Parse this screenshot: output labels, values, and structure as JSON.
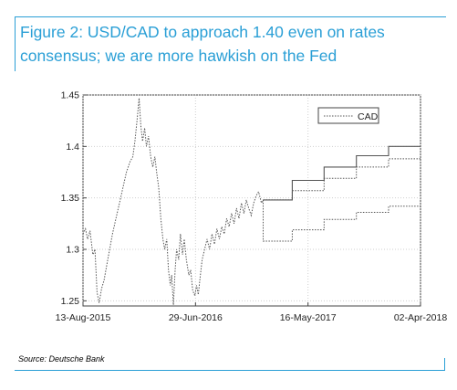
{
  "figure": {
    "title": "Figure 2: USD/CAD to approach 1.40 even on rates consensus; we are more hawkish on the Fed",
    "source": "Source: Deutsche Bank"
  },
  "chart_data": {
    "type": "line",
    "title": "",
    "xlabel": "",
    "ylabel": "",
    "ylim": [
      1.245,
      1.45
    ],
    "xlim": [
      "2015-08-13",
      "2018-04-02"
    ],
    "yticks": [
      1.25,
      1.3,
      1.35,
      1.4,
      1.45
    ],
    "ytick_labels": [
      "1.25",
      "1.3",
      "1.35",
      "1.4",
      "1.45"
    ],
    "xticks": [
      "2015-08-13",
      "2016-06-29",
      "2017-05-16",
      "2018-04-02"
    ],
    "xtick_labels": [
      "13-Aug-2015",
      "29-Jun-2016",
      "16-May-2017",
      "02-Apr-2018"
    ],
    "grid": true,
    "legend": {
      "entries": [
        "CAD"
      ],
      "placement": "top-right"
    },
    "series": [
      {
        "name": "CAD",
        "style": "dotted",
        "points": [
          [
            "2015-08-13",
            1.315
          ],
          [
            "2015-08-20",
            1.32
          ],
          [
            "2015-08-26",
            1.31
          ],
          [
            "2015-09-02",
            1.318
          ],
          [
            "2015-09-10",
            1.295
          ],
          [
            "2015-09-16",
            1.3
          ],
          [
            "2015-09-22",
            1.258
          ],
          [
            "2015-09-28",
            1.248
          ],
          [
            "2015-10-05",
            1.262
          ],
          [
            "2015-10-12",
            1.27
          ],
          [
            "2015-10-20",
            1.285
          ],
          [
            "2015-10-28",
            1.3
          ],
          [
            "2015-11-05",
            1.315
          ],
          [
            "2015-11-15",
            1.33
          ],
          [
            "2015-11-25",
            1.345
          ],
          [
            "2015-12-05",
            1.36
          ],
          [
            "2015-12-15",
            1.375
          ],
          [
            "2015-12-25",
            1.385
          ],
          [
            "2016-01-02",
            1.39
          ],
          [
            "2016-01-08",
            1.405
          ],
          [
            "2016-01-14",
            1.425
          ],
          [
            "2016-01-20",
            1.447
          ],
          [
            "2016-01-25",
            1.42
          ],
          [
            "2016-01-30",
            1.405
          ],
          [
            "2016-02-05",
            1.418
          ],
          [
            "2016-02-10",
            1.4
          ],
          [
            "2016-02-16",
            1.41
          ],
          [
            "2016-02-22",
            1.39
          ],
          [
            "2016-02-28",
            1.38
          ],
          [
            "2016-03-05",
            1.39
          ],
          [
            "2016-03-10",
            1.375
          ],
          [
            "2016-03-16",
            1.36
          ],
          [
            "2016-03-22",
            1.33
          ],
          [
            "2016-03-28",
            1.31
          ],
          [
            "2016-04-02",
            1.3
          ],
          [
            "2016-04-08",
            1.31
          ],
          [
            "2016-04-13",
            1.28
          ],
          [
            "2016-04-18",
            1.265
          ],
          [
            "2016-04-22",
            1.275
          ],
          [
            "2016-04-27",
            1.246
          ],
          [
            "2016-05-02",
            1.28
          ],
          [
            "2016-05-06",
            1.3
          ],
          [
            "2016-05-12",
            1.29
          ],
          [
            "2016-05-17",
            1.315
          ],
          [
            "2016-05-23",
            1.295
          ],
          [
            "2016-05-28",
            1.31
          ],
          [
            "2016-06-03",
            1.29
          ],
          [
            "2016-06-10",
            1.275
          ],
          [
            "2016-06-15",
            1.28
          ],
          [
            "2016-06-21",
            1.26
          ],
          [
            "2016-06-27",
            1.255
          ],
          [
            "2016-07-02",
            1.265
          ],
          [
            "2016-07-07",
            1.256
          ],
          [
            "2016-07-12",
            1.272
          ],
          [
            "2016-07-18",
            1.29
          ],
          [
            "2016-07-25",
            1.3
          ],
          [
            "2016-08-01",
            1.31
          ],
          [
            "2016-08-08",
            1.3
          ],
          [
            "2016-08-15",
            1.315
          ],
          [
            "2016-08-22",
            1.305
          ],
          [
            "2016-08-29",
            1.32
          ],
          [
            "2016-09-05",
            1.31
          ],
          [
            "2016-09-12",
            1.322
          ],
          [
            "2016-09-19",
            1.315
          ],
          [
            "2016-09-26",
            1.33
          ],
          [
            "2016-10-03",
            1.322
          ],
          [
            "2016-10-10",
            1.335
          ],
          [
            "2016-10-17",
            1.325
          ],
          [
            "2016-10-24",
            1.34
          ],
          [
            "2016-10-31",
            1.33
          ],
          [
            "2016-11-07",
            1.345
          ],
          [
            "2016-11-14",
            1.335
          ],
          [
            "2016-11-21",
            1.348
          ],
          [
            "2016-11-28",
            1.34
          ],
          [
            "2016-12-05",
            1.333
          ],
          [
            "2016-12-12",
            1.345
          ],
          [
            "2016-12-19",
            1.352
          ],
          [
            "2016-12-26",
            1.356
          ],
          [
            "2017-01-03",
            1.345
          ],
          [
            "2017-01-08",
            1.348
          ]
        ]
      },
      {
        "name": "",
        "style": "solid",
        "points": [
          [
            "2017-01-08",
            1.348
          ],
          [
            "2017-04-01",
            1.348
          ],
          [
            "2017-04-01",
            1.367
          ],
          [
            "2017-07-01",
            1.367
          ],
          [
            "2017-07-01",
            1.38
          ],
          [
            "2017-10-01",
            1.38
          ],
          [
            "2017-10-01",
            1.391
          ],
          [
            "2018-01-01",
            1.391
          ],
          [
            "2018-01-01",
            1.4
          ],
          [
            "2018-04-02",
            1.4
          ]
        ]
      },
      {
        "name": "",
        "style": "dotted",
        "points": [
          [
            "2017-01-08",
            1.348
          ],
          [
            "2017-04-01",
            1.348
          ],
          [
            "2017-04-01",
            1.357
          ],
          [
            "2017-07-01",
            1.357
          ],
          [
            "2017-07-01",
            1.369
          ],
          [
            "2017-10-01",
            1.369
          ],
          [
            "2017-10-01",
            1.38
          ],
          [
            "2018-01-01",
            1.38
          ],
          [
            "2018-01-01",
            1.388
          ],
          [
            "2018-04-02",
            1.388
          ]
        ]
      },
      {
        "name": "",
        "style": "dotted",
        "points": [
          [
            "2017-01-08",
            1.348
          ],
          [
            "2017-01-08",
            1.308
          ],
          [
            "2017-04-01",
            1.308
          ],
          [
            "2017-04-01",
            1.319
          ],
          [
            "2017-07-01",
            1.319
          ],
          [
            "2017-07-01",
            1.329
          ],
          [
            "2017-10-01",
            1.329
          ],
          [
            "2017-10-01",
            1.336
          ],
          [
            "2018-01-01",
            1.336
          ],
          [
            "2018-01-01",
            1.342
          ],
          [
            "2018-04-02",
            1.342
          ]
        ]
      }
    ],
    "colors": {
      "series": "#555555",
      "grid": "#cfcfcf",
      "axis": "#444444",
      "accent": "#2a9fd6"
    }
  }
}
